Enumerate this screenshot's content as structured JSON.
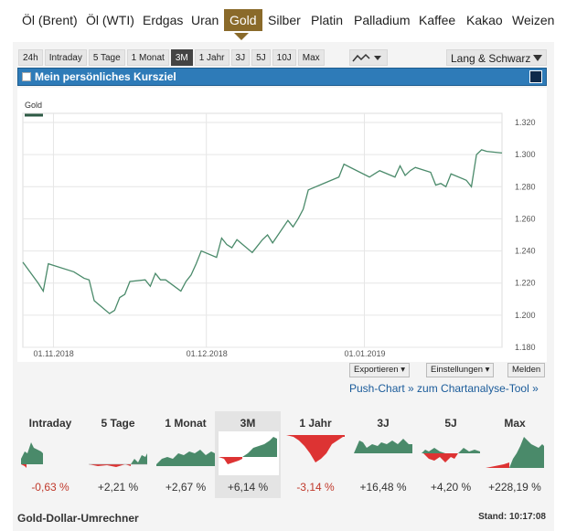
{
  "nav": {
    "items": [
      "Öl (Brent)",
      "Öl (WTI)",
      "Erdgas",
      "Uran",
      "Gold",
      "Silber",
      "Platin",
      "Palladium",
      "Kaffee",
      "Kakao",
      "Weizen"
    ],
    "active": "Gold"
  },
  "range_buttons": [
    "24h",
    "Intraday",
    "5 Tage",
    "1 Monat",
    "3M",
    "1 Jahr",
    "3J",
    "5J",
    "10J",
    "Max"
  ],
  "range_active": "3M",
  "exchange": "Lang & Schwarz",
  "kursziel_label": "Mein persönliches Kursziel",
  "chart_data": {
    "type": "line",
    "series": [
      {
        "name": "Gold",
        "x": [
          "2018-10-26",
          "2018-10-29",
          "2018-10-30",
          "2018-10-31",
          "2018-11-01",
          "2018-11-05",
          "2018-11-07",
          "2018-11-08",
          "2018-11-09",
          "2018-11-12",
          "2018-11-13",
          "2018-11-14",
          "2018-11-15",
          "2018-11-16",
          "2018-11-19",
          "2018-11-20",
          "2018-11-21",
          "2018-11-22",
          "2018-11-23",
          "2018-11-26",
          "2018-11-27",
          "2018-11-28",
          "2018-11-29",
          "2018-11-30",
          "2018-12-03",
          "2018-12-04",
          "2018-12-05",
          "2018-12-06",
          "2018-12-07",
          "2018-12-10",
          "2018-12-11",
          "2018-12-12",
          "2018-12-13",
          "2018-12-14",
          "2018-12-17",
          "2018-12-18",
          "2018-12-19",
          "2018-12-20",
          "2018-12-21",
          "2018-12-24",
          "2018-12-27",
          "2018-12-28",
          "2019-01-02",
          "2019-01-03",
          "2019-01-04",
          "2019-01-07",
          "2019-01-08",
          "2019-01-09",
          "2019-01-10",
          "2019-01-11",
          "2019-01-14",
          "2019-01-15",
          "2019-01-16",
          "2019-01-17",
          "2019-01-18",
          "2019-01-21",
          "2019-01-22",
          "2019-01-23",
          "2019-01-24",
          "2019-01-25",
          "2019-01-28"
        ],
        "y": [
          1.233,
          1.22,
          1.215,
          1.232,
          1.231,
          1.227,
          1.223,
          1.222,
          1.209,
          1.201,
          1.203,
          1.211,
          1.213,
          1.221,
          1.222,
          1.218,
          1.226,
          1.222,
          1.222,
          1.215,
          1.221,
          1.225,
          1.232,
          1.24,
          1.236,
          1.248,
          1.244,
          1.242,
          1.247,
          1.239,
          1.243,
          1.247,
          1.25,
          1.245,
          1.259,
          1.255,
          1.26,
          1.266,
          1.278,
          1.282,
          1.286,
          1.294,
          1.286,
          1.288,
          1.29,
          1.286,
          1.293,
          1.287,
          1.29,
          1.292,
          1.289,
          1.281,
          1.282,
          1.28,
          1.288,
          1.284,
          1.28,
          1.3,
          1.303,
          1.302,
          1.301
        ]
      }
    ],
    "legend": [
      "Gold"
    ],
    "x_ticks": [
      "01.11.2018",
      "01.12.2018",
      "01.01.2019"
    ],
    "x_tick_dates": [
      "2018-11-01",
      "2018-12-01",
      "2019-01-01"
    ],
    "y_ticks": [
      "1.320",
      "1.300",
      "1.280",
      "1.260",
      "1.240",
      "1.220",
      "1.200",
      "1.180"
    ],
    "y_tick_values": [
      1.32,
      1.3,
      1.28,
      1.26,
      1.24,
      1.22,
      1.2,
      1.18
    ],
    "ylim": [
      1.18,
      1.32
    ],
    "grid": true,
    "color": "#4a8a6a"
  },
  "buttons": {
    "export": "Exportieren ▾",
    "settings": "Einstellungen ▾",
    "report": "Melden"
  },
  "push_link": "Push-Chart » zum Chartanalyse-Tool »",
  "sparks": [
    {
      "title": "Intraday",
      "change": "-0,63 %",
      "negative": true
    },
    {
      "title": "5 Tage",
      "change": "+2,21 %",
      "negative": false
    },
    {
      "title": "1 Monat",
      "change": "+2,67 %",
      "negative": false
    },
    {
      "title": "3M",
      "change": "+6,14 %",
      "negative": false
    },
    {
      "title": "1 Jahr",
      "change": "-3,14 %",
      "negative": true
    },
    {
      "title": "3J",
      "change": "+16,48 %",
      "negative": false
    },
    {
      "title": "5J",
      "change": "+4,20 %",
      "negative": false
    },
    {
      "title": "Max",
      "change": "+228,19 %",
      "negative": false
    }
  ],
  "footer": {
    "title": "Gold-Dollar-Umrechner",
    "stand": "Stand: 10:17:08"
  }
}
